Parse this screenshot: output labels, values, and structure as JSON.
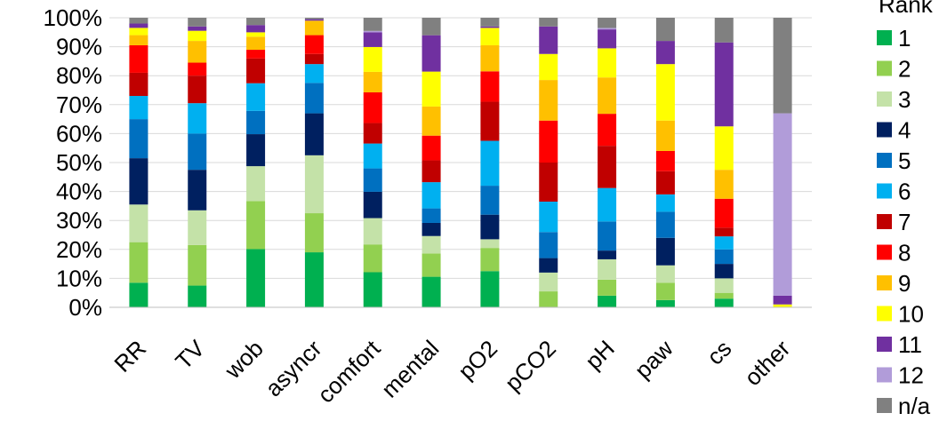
{
  "chart_data": {
    "type": "bar",
    "stacked": true,
    "normalized": true,
    "categories": [
      "RR",
      "TV",
      "wob",
      "asyncr",
      "comfort",
      "mental",
      "pO2",
      "pCO2",
      "pH",
      "paw",
      "cs",
      "other"
    ],
    "ylim": [
      0,
      100
    ],
    "y_ticks": [
      "0%",
      "10%",
      "20%",
      "30%",
      "40%",
      "50%",
      "60%",
      "70%",
      "80%",
      "90%",
      "100%"
    ],
    "grid": true,
    "legend_title": "Rank",
    "legend_position": "right",
    "series": [
      {
        "name": "1",
        "color": "#00b050",
        "values": [
          8.5,
          7.5,
          20,
          19,
          12,
          10.5,
          12.5,
          0,
          4,
          2.5,
          3,
          0
        ]
      },
      {
        "name": "2",
        "color": "#92d050",
        "values": [
          14,
          14,
          16.5,
          13.5,
          9.5,
          8,
          8,
          5.5,
          5.5,
          6,
          2,
          0
        ]
      },
      {
        "name": "3",
        "color": "#c4e2a8",
        "values": [
          13,
          12,
          12,
          20,
          9,
          6,
          3,
          6.5,
          7,
          6,
          5,
          0
        ]
      },
      {
        "name": "4",
        "color": "#002060",
        "values": [
          16,
          14,
          11,
          14.5,
          9,
          4.5,
          8.5,
          5,
          3,
          9.5,
          5,
          0
        ]
      },
      {
        "name": "5",
        "color": "#0070c0",
        "values": [
          13.5,
          12.5,
          8,
          10.5,
          8,
          5,
          10,
          9,
          10,
          9,
          5,
          0
        ]
      },
      {
        "name": "6",
        "color": "#00b0f0",
        "values": [
          8,
          10.5,
          9.5,
          6.5,
          8.5,
          9,
          15.5,
          10.5,
          11.5,
          6,
          4.5,
          0
        ]
      },
      {
        "name": "7",
        "color": "#c00000",
        "values": [
          8,
          9.5,
          8.5,
          3.5,
          7,
          7.5,
          13.5,
          13.5,
          14.5,
          8,
          3,
          0
        ]
      },
      {
        "name": "8",
        "color": "#ff0000",
        "values": [
          9.5,
          4.5,
          3,
          6.5,
          10.5,
          8.5,
          10.5,
          14.5,
          11,
          7,
          10,
          0
        ]
      },
      {
        "name": "9",
        "color": "#ffc000",
        "values": [
          3.5,
          7.5,
          4.5,
          5,
          7,
          10,
          9,
          14,
          12.5,
          10.5,
          10,
          0
        ]
      },
      {
        "name": "10",
        "color": "#ffff00",
        "values": [
          2.5,
          3.5,
          1.5,
          0,
          8.5,
          12,
          6,
          9,
          10,
          19.5,
          15,
          1
        ]
      },
      {
        "name": "11",
        "color": "#7030a0",
        "values": [
          1.5,
          1.5,
          2.5,
          0.5,
          5,
          12.5,
          0.5,
          9.5,
          6.5,
          8,
          29,
          3
        ]
      },
      {
        "name": "12",
        "color": "#b19cd9",
        "values": [
          0,
          0,
          0,
          0,
          0.5,
          0,
          0,
          0,
          0.5,
          0,
          0,
          63
        ]
      },
      {
        "name": "n/a",
        "color": "#808080",
        "values": [
          2,
          3,
          2.5,
          0.5,
          4.5,
          6,
          3,
          3,
          3.5,
          8,
          8.5,
          33
        ]
      }
    ]
  }
}
